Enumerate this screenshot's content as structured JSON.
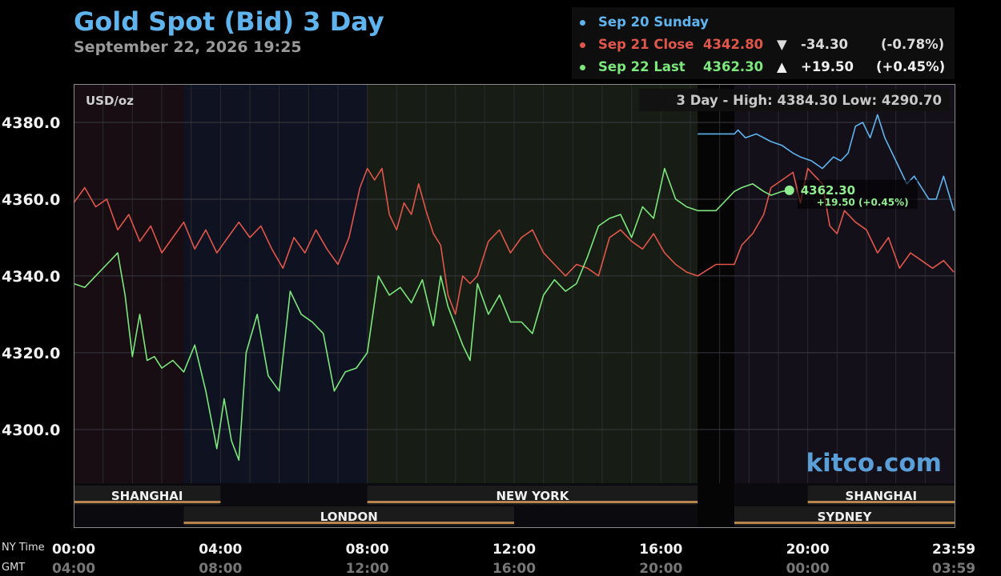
{
  "header": {
    "title": "Gold Spot (Bid) 3 Day",
    "subtitle": "September 22, 2026 19:25"
  },
  "legend": [
    {
      "label": "Sep 20 Sunday",
      "price": "",
      "arrow": "",
      "change": "",
      "pct": "",
      "color": "#5fb4ee"
    },
    {
      "label": "Sep 21 Close",
      "price": "4342.80",
      "arrow": "▼",
      "change": "-34.30",
      "pct": "(-0.78%)",
      "color": "#e0564a"
    },
    {
      "label": "Sep 22 Last",
      "price": "4362.30",
      "arrow": "▲",
      "change": "+19.50",
      "pct": "(+0.45%)",
      "color": "#7ce77c"
    }
  ],
  "chart_info": {
    "unit": "USD/oz",
    "range_text": "3 Day - High: 4384.30  Low: 4290.70",
    "brand": "kitco.com",
    "current_price": "4362.30",
    "current_change": "+19.50 (+0.45%)"
  },
  "axis_names": {
    "ny": "NY Time",
    "gmt": "GMT"
  },
  "sessions": [
    {
      "name": "SHANGHAI",
      "start": 0,
      "end": 4,
      "row": 1
    },
    {
      "name": "NEW YORK",
      "start": 8,
      "end": 17,
      "row": 1
    },
    {
      "name": "SHANGHAI",
      "start": 20,
      "end": 24,
      "row": 1
    },
    {
      "name": "LONDON",
      "start": 3,
      "end": 12,
      "row": 2
    },
    {
      "name": "SYDNEY",
      "start": 18,
      "end": 24,
      "row": 2
    }
  ],
  "chart_data": {
    "type": "line",
    "title": "Gold Spot (Bid) 3 Day",
    "ylabel": "USD/oz",
    "ylim": [
      4286,
      4390
    ],
    "xlim": [
      0,
      24
    ],
    "yticks": [
      "4300.0",
      "4320.0",
      "4340.0",
      "4360.0",
      "4380.0"
    ],
    "ytick_values": [
      4300,
      4320,
      4340,
      4360,
      4380
    ],
    "xticks_ny": [
      "00:00",
      "04:00",
      "08:00",
      "12:00",
      "16:00",
      "20:00",
      "23:59"
    ],
    "xticks_gmt": [
      "04:00",
      "08:00",
      "12:00",
      "16:00",
      "20:00",
      "00:00",
      "03:59"
    ],
    "xtick_values": [
      0,
      4,
      8,
      12,
      16,
      20,
      23.98
    ],
    "grid": true,
    "series": [
      {
        "name": "Sep 20 Sunday",
        "color": "#5fb4ee",
        "x": [
          17,
          17.5,
          18.0,
          18.1,
          18.3,
          18.6,
          19.0,
          19.3,
          19.6,
          19.8,
          20.1,
          20.4,
          20.7,
          20.9,
          21.1,
          21.3,
          21.5,
          21.7,
          21.9,
          22.1,
          22.3,
          22.5,
          22.7,
          22.9,
          23.1,
          23.3,
          23.5,
          23.7,
          23.98
        ],
        "y": [
          4377,
          4377,
          4377,
          4378,
          4376,
          4377,
          4375,
          4374,
          4372,
          4371,
          4370,
          4368,
          4371,
          4370,
          4372,
          4379,
          4380,
          4376,
          4382,
          4376,
          4372,
          4368,
          4364,
          4366,
          4363,
          4360,
          4360,
          4366,
          4357
        ]
      },
      {
        "name": "Sep 21 Close",
        "color": "#e0564a",
        "x": [
          0,
          0.3,
          0.6,
          0.9,
          1.2,
          1.5,
          1.8,
          2.1,
          2.4,
          2.7,
          3.0,
          3.3,
          3.6,
          3.9,
          4.2,
          4.5,
          4.8,
          5.1,
          5.4,
          5.7,
          6.0,
          6.3,
          6.6,
          6.9,
          7.2,
          7.5,
          7.8,
          8.0,
          8.2,
          8.4,
          8.6,
          8.8,
          9.0,
          9.2,
          9.4,
          9.6,
          9.8,
          10.0,
          10.2,
          10.4,
          10.6,
          10.8,
          11.0,
          11.3,
          11.6,
          11.9,
          12.2,
          12.5,
          12.8,
          13.1,
          13.4,
          13.7,
          14.0,
          14.3,
          14.6,
          14.9,
          15.2,
          15.5,
          15.8,
          16.1,
          16.4,
          16.7,
          17.0,
          17.5,
          18.0,
          18.2,
          18.5,
          18.8,
          19.0,
          19.3,
          19.6,
          19.8,
          20.0,
          20.2,
          20.4,
          20.6,
          20.8,
          21.0,
          21.3,
          21.6,
          21.9,
          22.2,
          22.5,
          22.8,
          23.1,
          23.4,
          23.7,
          23.98
        ],
        "y": [
          4359,
          4363,
          4358,
          4360,
          4352,
          4356,
          4349,
          4353,
          4346,
          4350,
          4354,
          4347,
          4352,
          4346,
          4350,
          4354,
          4350,
          4353,
          4347,
          4342,
          4350,
          4346,
          4352,
          4347,
          4343,
          4350,
          4363,
          4368,
          4365,
          4368,
          4356,
          4352,
          4359,
          4356,
          4364,
          4357,
          4351,
          4348,
          4335,
          4330,
          4340,
          4338,
          4340,
          4349,
          4352,
          4346,
          4350,
          4352,
          4346,
          4343,
          4340,
          4343,
          4342,
          4340,
          4350,
          4352,
          4349,
          4347,
          4351,
          4346,
          4343,
          4341,
          4340,
          4343,
          4343,
          4348,
          4351,
          4356,
          4363,
          4365,
          4367,
          4359,
          4368,
          4366,
          4364,
          4353,
          4351,
          4357,
          4354,
          4352,
          4346,
          4350,
          4342,
          4346,
          4344,
          4342,
          4344,
          4341
        ]
      },
      {
        "name": "Sep 22 Last",
        "color": "#7ce77c",
        "x": [
          0,
          0.3,
          0.6,
          0.9,
          1.2,
          1.4,
          1.6,
          1.8,
          2.0,
          2.2,
          2.4,
          2.7,
          3.0,
          3.3,
          3.6,
          3.9,
          4.1,
          4.3,
          4.5,
          4.7,
          5.0,
          5.3,
          5.6,
          5.9,
          6.2,
          6.5,
          6.8,
          7.1,
          7.4,
          7.7,
          8.0,
          8.3,
          8.6,
          8.9,
          9.2,
          9.5,
          9.8,
          10.0,
          10.2,
          10.4,
          10.6,
          10.8,
          11.0,
          11.3,
          11.6,
          11.9,
          12.2,
          12.5,
          12.8,
          13.1,
          13.4,
          13.7,
          14.0,
          14.3,
          14.6,
          14.9,
          15.2,
          15.5,
          15.8,
          16.1,
          16.4,
          16.7,
          17.0,
          17.5,
          18.0,
          18.2,
          18.5,
          18.8,
          19.0,
          19.3,
          19.5
        ],
        "y": [
          4338,
          4337,
          4340,
          4343,
          4346,
          4335,
          4319,
          4330,
          4318,
          4319,
          4316,
          4318,
          4315,
          4322,
          4310,
          4295,
          4308,
          4297,
          4292,
          4320,
          4330,
          4314,
          4310,
          4336,
          4330,
          4328,
          4325,
          4310,
          4315,
          4316,
          4320,
          4340,
          4335,
          4337,
          4333,
          4339,
          4327,
          4340,
          4332,
          4327,
          4322,
          4318,
          4338,
          4330,
          4335,
          4328,
          4328,
          4325,
          4335,
          4339,
          4336,
          4338,
          4345,
          4353,
          4355,
          4356,
          4350,
          4358,
          4355,
          4368,
          4360,
          4358,
          4357,
          4357,
          4362,
          4363,
          4364,
          4362,
          4361,
          4362,
          4362.3
        ]
      }
    ]
  }
}
